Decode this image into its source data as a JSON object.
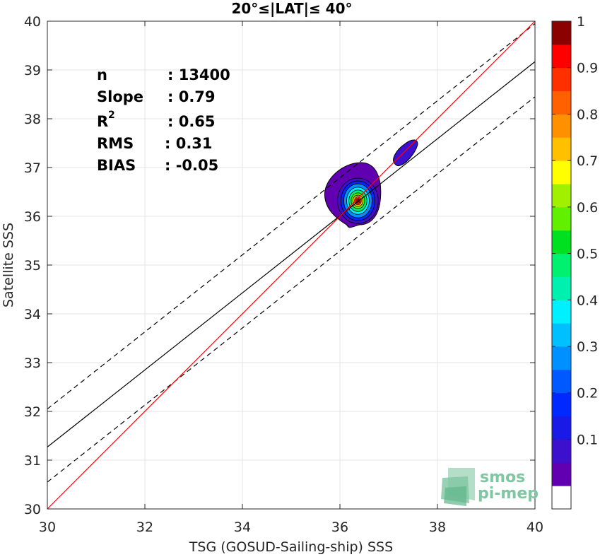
{
  "chart_data": {
    "type": "contour",
    "title": "20°≤|LAT|≤ 40°",
    "xlabel": "TSG (GOSUD-Sailing-ship) SSS",
    "ylabel": "Satellite SSS",
    "xlim": [
      30,
      40
    ],
    "ylim": [
      30,
      40
    ],
    "xticks": [
      "30",
      "32",
      "34",
      "36",
      "38",
      "40"
    ],
    "yticks": [
      "30",
      "31",
      "32",
      "33",
      "34",
      "35",
      "36",
      "37",
      "38",
      "39",
      "40"
    ],
    "grid": true,
    "stats": [
      {
        "label": "n",
        "value": ": 13400"
      },
      {
        "label": "Slope",
        "value": ": 0.79"
      },
      {
        "label": "R",
        "sup": "2",
        "value": ": 0.65"
      },
      {
        "label": "RMS",
        "value": ": 0.31"
      },
      {
        "label": "BIAS",
        "value": ": -0.05"
      }
    ],
    "lines": {
      "identity": {
        "x": [
          30,
          40
        ],
        "y": [
          30,
          40
        ],
        "color": "#ff0000"
      },
      "fit": {
        "x": [
          30,
          40
        ],
        "y": [
          31.27,
          39.17
        ],
        "color": "#000000"
      },
      "fit_upper": {
        "x": [
          30,
          40
        ],
        "y": [
          32.05,
          39.95
        ],
        "dashed": true
      },
      "fit_lower": {
        "x": [
          30,
          40
        ],
        "y": [
          30.55,
          38.45
        ],
        "dashed": true
      }
    },
    "density_main": {
      "cx": 36.34,
      "cy": 36.26
    },
    "density_secondary": {
      "cx": 37.3,
      "cy": 37.25
    },
    "colorbar": {
      "ticks": [
        "0.1",
        "0.2",
        "0.3",
        "0.4",
        "0.5",
        "0.6",
        "0.7",
        "0.8",
        "0.9",
        "1"
      ],
      "levels": 20,
      "colors": [
        "#ffffff",
        "#6000b0",
        "#3c10cc",
        "#1a1ae6",
        "#0028ff",
        "#0058ff",
        "#0090ff",
        "#00c0ff",
        "#00f0ff",
        "#00f0b0",
        "#00f070",
        "#00e020",
        "#60f000",
        "#a0f000",
        "#ffff00",
        "#ffc000",
        "#ff9000",
        "#ff6000",
        "#ff3000",
        "#ff0000",
        "#8b0000"
      ]
    },
    "logo": {
      "line1": "smos",
      "line2": "pi-mep"
    }
  }
}
